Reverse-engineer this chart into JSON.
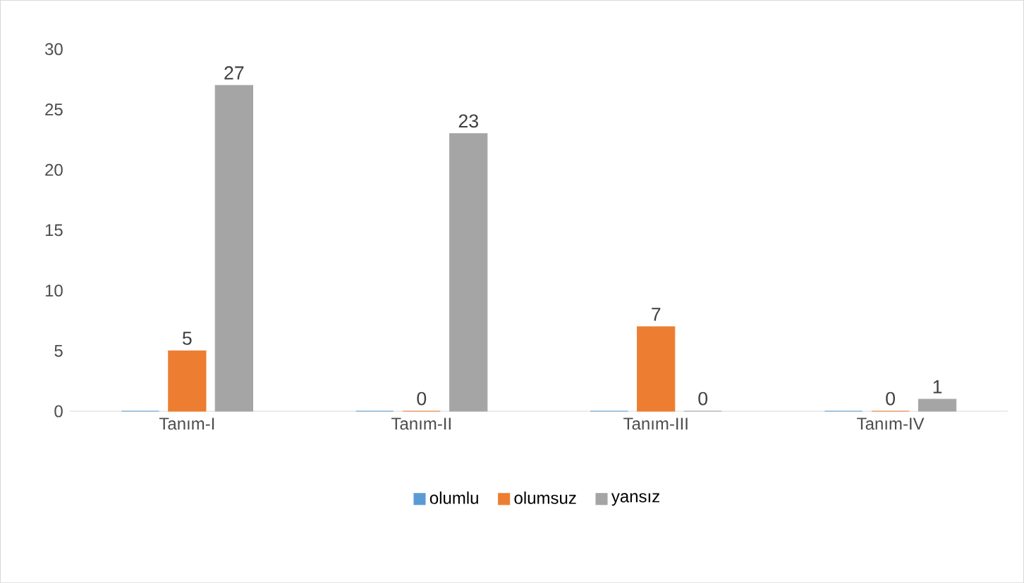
{
  "chart_data": {
    "type": "bar",
    "categories": [
      "Tanım-I",
      "Tanım-II",
      "Tanım-III",
      "Tanım-IV"
    ],
    "series": [
      {
        "name": "olumlu",
        "color": "#5b9bd5",
        "values": [
          0,
          0,
          0,
          0
        ],
        "value_labels": [
          null,
          null,
          null,
          null
        ]
      },
      {
        "name": "olumsuz",
        "color": "#ed7d31",
        "values": [
          5,
          0,
          7,
          0
        ],
        "value_labels": [
          "5",
          "0",
          "7",
          "0"
        ]
      },
      {
        "name": "yansız",
        "color": "#a5a5a5",
        "values": [
          27,
          23,
          0,
          1
        ],
        "value_labels": [
          "27",
          "23",
          "0",
          "1"
        ]
      }
    ],
    "ylim": [
      0,
      30
    ],
    "yticks": [
      0,
      5,
      10,
      15,
      20,
      25,
      30
    ],
    "grid": false,
    "legend": "bottom"
  }
}
